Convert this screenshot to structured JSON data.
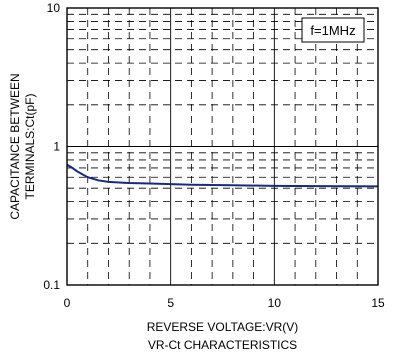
{
  "chart_data": {
    "type": "line",
    "title": "VR-Ct CHARACTERISTICS",
    "xlabel": "REVERSE VOLTAGE:VR(V)",
    "ylabel_line1": "CAPACITANCE BETWEEN",
    "ylabel_line2": "TERMINALS:Ct(pF)",
    "annotation": "f=1MHz",
    "x_scale": "linear",
    "y_scale": "log",
    "xlim": [
      0,
      15
    ],
    "ylim": [
      0.1,
      10
    ],
    "x_ticks": [
      {
        "value": 0,
        "label": "0"
      },
      {
        "value": 5,
        "label": "5"
      },
      {
        "value": 10,
        "label": "10"
      },
      {
        "value": 15,
        "label": "15"
      }
    ],
    "y_ticks": [
      {
        "value": 0.1,
        "label": "0.1"
      },
      {
        "value": 1,
        "label": "1"
      },
      {
        "value": 10,
        "label": "10"
      }
    ],
    "x_minor_step": 1,
    "y_minor": [
      2,
      3,
      4,
      5,
      6,
      7,
      8,
      9
    ],
    "grid": true,
    "series": [
      {
        "color": "#1a2a7a",
        "x": [
          0,
          0.2,
          0.5,
          1,
          1.5,
          2,
          3,
          4,
          5,
          6,
          8,
          10,
          12,
          15
        ],
        "y": [
          0.74,
          0.71,
          0.66,
          0.6,
          0.57,
          0.555,
          0.545,
          0.54,
          0.535,
          0.53,
          0.525,
          0.52,
          0.518,
          0.515
        ]
      }
    ]
  }
}
